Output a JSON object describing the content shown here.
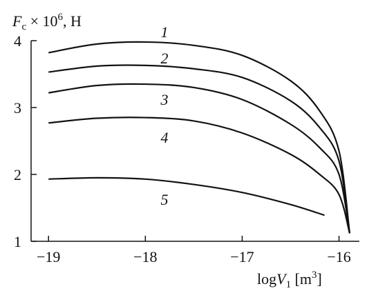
{
  "chart_data": {
    "type": "line",
    "y_label": [
      "F",
      "c",
      " × 10",
      "6",
      ", H"
    ],
    "x_label": [
      "log",
      "V",
      "1",
      " [m",
      "3",
      "]"
    ],
    "color": "#111111",
    "xlim": [
      -19.18,
      -15.79
    ],
    "ylim": [
      1,
      4
    ],
    "xticks": [
      {
        "value": -19,
        "label": "−19"
      },
      {
        "value": -18,
        "label": "−18"
      },
      {
        "value": -17,
        "label": "−17"
      },
      {
        "value": -16,
        "label": "−16"
      }
    ],
    "yticks": [
      1,
      2,
      3,
      4
    ],
    "series": [
      {
        "name": "1",
        "x": [
          -19,
          -18.5,
          -18,
          -17.5,
          -17,
          -16.5,
          -16.2,
          -16,
          -15.89
        ],
        "values": [
          3.82,
          3.95,
          3.98,
          3.93,
          3.78,
          3.4,
          2.95,
          2.35,
          1.12
        ]
      },
      {
        "name": "2",
        "x": [
          -19,
          -18.5,
          -18,
          -17.5,
          -17,
          -16.5,
          -16.2,
          -16,
          -15.89
        ],
        "values": [
          3.53,
          3.62,
          3.63,
          3.58,
          3.45,
          3.1,
          2.7,
          2.2,
          1.12
        ]
      },
      {
        "name": "3",
        "x": [
          -19,
          -18.5,
          -18,
          -17.5,
          -17,
          -16.5,
          -16.2,
          -16,
          -15.89
        ],
        "values": [
          3.22,
          3.33,
          3.35,
          3.3,
          3.12,
          2.75,
          2.4,
          2.0,
          1.12
        ]
      },
      {
        "name": "4",
        "x": [
          -19,
          -18.5,
          -18,
          -17.5,
          -17,
          -16.5,
          -16.2,
          -16,
          -15.89
        ],
        "values": [
          2.77,
          2.84,
          2.85,
          2.8,
          2.62,
          2.3,
          2.0,
          1.7,
          1.12
        ]
      },
      {
        "name": "5",
        "x": [
          -19,
          -18.5,
          -18,
          -17.5,
          -17,
          -16.5,
          -16.15
        ],
        "values": [
          1.93,
          1.95,
          1.93,
          1.85,
          1.73,
          1.55,
          1.39
        ]
      }
    ]
  }
}
